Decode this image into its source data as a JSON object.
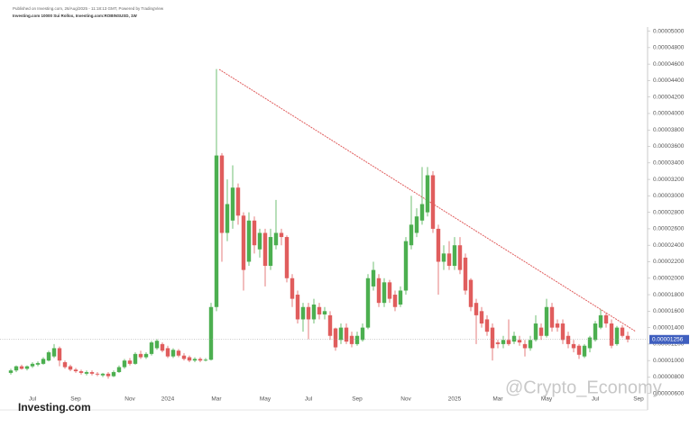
{
  "chart_data": {
    "type": "candlestick",
    "header_line_1": "Published on Investing.com, 26/Aug/2025 - 11:18:13 GMT, Powered by TradingView",
    "header_line_2": "Investing.com 10000 Sui Rollox, Investing.com:ROBINSUSD, 1W",
    "logo": "Investing.com",
    "watermark": "@Crypto_Economy",
    "up_color": "#4caf50",
    "down_color": "#e05d5d",
    "categories": [
      null,
      null,
      null,
      null,
      "Jul",
      null,
      null,
      null,
      null,
      null,
      null,
      null,
      "Sep",
      null,
      null,
      null,
      null,
      null,
      null,
      null,
      null,
      null,
      "Nov",
      null,
      null,
      null,
      null,
      null,
      null,
      "2024",
      null,
      null,
      null,
      null,
      null,
      null,
      null,
      null,
      "Mar",
      null,
      null,
      null,
      null,
      null,
      null,
      null,
      null,
      "May",
      null,
      null,
      null,
      null,
      null,
      null,
      null,
      "Jul",
      null,
      null,
      null,
      null,
      null,
      null,
      null,
      null,
      "Sep",
      null,
      null,
      null,
      null,
      null,
      null,
      null,
      null,
      "Nov",
      null,
      null,
      null,
      null,
      null,
      null,
      null,
      null,
      "2025",
      null,
      null,
      null,
      null,
      null,
      null,
      null,
      "Mar",
      null,
      null,
      null,
      null,
      null,
      null,
      null,
      null,
      "May",
      null,
      null,
      null,
      null,
      null,
      null,
      null,
      null,
      "Jul",
      null,
      null,
      null,
      null,
      null,
      null,
      null,
      "Sep"
    ],
    "open": [
      8.5e-06,
      8.8e-06,
      9.3e-06,
      9e-06,
      9.3e-06,
      9.5e-06,
      9.6e-06,
      1e-05,
      1.05e-05,
      1.15e-05,
      9.8e-06,
      9.3e-06,
      8.9e-06,
      8.7e-06,
      8.4e-06,
      8.6e-06,
      8.4e-06,
      8.2e-06,
      8.4e-06,
      8.1e-06,
      8.6e-06,
      9.2e-06,
      1e-05,
      9.6e-06,
      1.08e-05,
      1.04e-05,
      1.08e-05,
      1.15e-05,
      1.2e-05,
      1.15e-05,
      1.05e-05,
      1.12e-05,
      1.06e-05,
      1.04e-05,
      1e-05,
      1.02e-05,
      1e-05,
      1.01e-05,
      1.65e-05,
      3.49e-05,
      2.55e-05,
      2.7e-05,
      3.1e-05,
      2.76e-05,
      2.2e-05,
      2.7e-05,
      2.35e-05,
      2.55e-05,
      2.15e-05,
      2.4e-05,
      2.55e-05,
      2.5e-05,
      2e-05,
      1.8e-05,
      1.5e-05,
      1.65e-05,
      1.5e-05,
      1.65e-05,
      1.56e-05,
      1.55e-05,
      1.39e-05,
      1.25e-05,
      1.4e-05,
      1.3e-05,
      1.2e-05,
      1.25e-05,
      1.4e-05,
      1.9e-05,
      2e-05,
      1.7e-05,
      1.95e-05,
      1.8e-05,
      1.68e-05,
      1.85e-05,
      2.4e-05,
      2.55e-05,
      2.7e-05,
      2.8e-05,
      3.25e-05,
      2.6e-05,
      2.2e-05,
      2.3e-05,
      2.15e-05,
      2.4e-05,
      2.25e-05,
      1.98e-05,
      1.7e-05,
      1.6e-05,
      1.5e-05,
      1.4e-05,
      1.22e-05,
      1.2e-05,
      1.25e-05,
      1.23e-05,
      1.25e-05,
      1.2e-05,
      1.15e-05,
      1.25e-05,
      1.4e-05,
      1.3e-05,
      1.65e-05,
      1.45e-05,
      1.45e-05,
      1.3e-05,
      1.2e-05,
      1.18e-05,
      1.05e-05,
      1.15e-05,
      1.25e-05,
      1.4e-05,
      1.55e-05,
      1.45e-05,
      1.2e-05,
      1.4e-05,
      1.3e-05,
      null,
      null
    ],
    "high": [
      9e-06,
      9.4e-06,
      9.5e-06,
      9.4e-06,
      9.8e-06,
      9.9e-06,
      1.04e-05,
      1.12e-05,
      1.2e-05,
      1.17e-05,
      1e-05,
      9.5e-06,
      9.1e-06,
      8.9e-06,
      8.8e-06,
      8.8e-06,
      8.6e-06,
      8.5e-06,
      8.6e-06,
      8.8e-06,
      9.4e-06,
      1.02e-05,
      1.03e-05,
      1.1e-05,
      1.12e-05,
      1.1e-05,
      1.24e-05,
      1.26e-05,
      1.22e-05,
      1.18e-05,
      1.15e-05,
      1.14e-05,
      1.09e-05,
      1.06e-05,
      1.04e-05,
      1.04e-05,
      1.03e-05,
      1.7e-05,
      4.54e-05,
      3.52e-05,
      3.2e-05,
      3.37e-05,
      3.15e-05,
      2.8e-05,
      2.8e-05,
      2.75e-05,
      2.6e-05,
      2.6e-05,
      2.6e-05,
      2.95e-05,
      2.6e-05,
      2.52e-05,
      2.05e-05,
      1.85e-05,
      1.7e-05,
      1.7e-05,
      1.75e-05,
      1.7e-05,
      1.65e-05,
      1.6e-05,
      1.4e-05,
      1.45e-05,
      1.45e-05,
      1.35e-05,
      1.35e-05,
      1.45e-05,
      2.05e-05,
      2.2e-05,
      2.05e-05,
      2e-05,
      1.98e-05,
      1.85e-05,
      1.9e-05,
      2.5e-05,
      3e-05,
      2.85e-05,
      3.35e-05,
      3.35e-05,
      3.3e-05,
      2.65e-05,
      2.4e-05,
      2.45e-05,
      2.5e-05,
      2.5e-05,
      2.3e-05,
      2e-05,
      1.75e-05,
      1.65e-05,
      1.55e-05,
      1.45e-05,
      1.25e-05,
      1.3e-05,
      1.5e-05,
      1.35e-05,
      1.3e-05,
      1.25e-05,
      1.3e-05,
      1.55e-05,
      1.45e-05,
      1.75e-05,
      1.7e-05,
      1.5e-05,
      1.5e-05,
      1.35e-05,
      1.25e-05,
      1.2e-05,
      1.2e-05,
      1.3e-05,
      1.48e-05,
      1.62e-05,
      1.58e-05,
      1.5e-05,
      1.42e-05,
      1.43e-05,
      1.35e-05,
      null,
      null
    ],
    "low": [
      8.3e-06,
      8.6e-06,
      8.9e-06,
      8.8e-06,
      9.1e-06,
      9.3e-06,
      9.5e-06,
      9.9e-06,
      1.03e-05,
      9.3e-06,
      9e-06,
      8.7e-06,
      8.5e-06,
      8.3e-06,
      8.2e-06,
      8.2e-06,
      8.1e-06,
      8e-06,
      7.8e-06,
      8e-06,
      8.5e-06,
      9e-06,
      9.4e-06,
      9.5e-06,
      1.02e-05,
      1.02e-05,
      1.06e-05,
      1.13e-05,
      1.1e-05,
      1.03e-05,
      1.03e-05,
      1.04e-05,
      1e-05,
      9.8e-06,
      9.8e-06,
      9.8e-06,
      9.9e-06,
      1e-05,
      1.6e-05,
      2.2e-05,
      2.45e-05,
      2.6e-05,
      2.65e-05,
      1.85e-05,
      2.15e-05,
      2.3e-05,
      2.25e-05,
      1.9e-05,
      2.1e-05,
      2.35e-05,
      2.4e-05,
      1.95e-05,
      1.65e-05,
      1.45e-05,
      1.35e-05,
      1.26e-05,
      1.45e-05,
      1.5e-05,
      1.5e-05,
      1.25e-05,
      1.12e-05,
      1.2e-05,
      1.2e-05,
      1.16e-05,
      1.18e-05,
      1.23e-05,
      1.38e-05,
      1.85e-05,
      1.65e-05,
      1.65e-05,
      1.7e-05,
      1.6e-05,
      1.65e-05,
      1.8e-05,
      2.35e-05,
      2.5e-05,
      2.65e-05,
      2.75e-05,
      2.55e-05,
      1.8e-05,
      2.1e-05,
      2.1e-05,
      2.1e-05,
      2.05e-05,
      1.8e-05,
      1.6e-05,
      1.2e-05,
      1.4e-05,
      1.3e-05,
      1e-05,
      1.15e-05,
      1.15e-05,
      1.18e-05,
      1.2e-05,
      1.18e-05,
      1.05e-05,
      1.12e-05,
      1.23e-05,
      1.25e-05,
      1.28e-05,
      1.35e-05,
      1.35e-05,
      1.2e-05,
      1.15e-05,
      1.1e-05,
      1.02e-05,
      1.03e-05,
      1.1e-05,
      1.23e-05,
      1.38e-05,
      1.4e-05,
      1.15e-05,
      1.18e-05,
      1.28e-05,
      1.22e-05,
      null,
      null
    ],
    "close": [
      8.8e-06,
      9.3e-06,
      9e-06,
      9.3e-06,
      9.6e-06,
      9.7e-06,
      1.02e-05,
      1.1e-05,
      1.15e-05,
      1e-05,
      9.2e-06,
      8.9e-06,
      8.7e-06,
      8.5e-06,
      8.6e-06,
      8.4e-06,
      8.3e-06,
      8.4e-06,
      8.1e-06,
      8.6e-06,
      9.2e-06,
      1e-05,
      9.6e-06,
      1.08e-05,
      1.04e-05,
      1.08e-05,
      1.22e-05,
      1.24e-05,
      1.12e-05,
      1.05e-05,
      1.13e-05,
      1.06e-05,
      1.02e-05,
      1e-05,
      1.02e-05,
      1e-05,
      1.01e-05,
      1.65e-05,
      3.49e-05,
      2.55e-05,
      2.9e-05,
      3.1e-05,
      2.76e-05,
      2.1e-05,
      2.7e-05,
      2.4e-05,
      2.55e-05,
      2.15e-05,
      2.5e-05,
      2.55e-05,
      2.5e-05,
      2e-05,
      1.75e-05,
      1.5e-05,
      1.65e-05,
      1.5e-05,
      1.68e-05,
      1.56e-05,
      1.6e-05,
      1.3e-05,
      1.16e-05,
      1.4e-05,
      1.23e-05,
      1.2e-05,
      1.3e-05,
      1.4e-05,
      2e-05,
      2.1e-05,
      1.7e-05,
      1.95e-05,
      1.75e-05,
      1.65e-05,
      1.85e-05,
      2.45e-05,
      2.65e-05,
      2.75e-05,
      2.9e-05,
      3.25e-05,
      2.6e-05,
      2.2e-05,
      2.3e-05,
      2.15e-05,
      2.4e-05,
      2.1e-05,
      1.85e-05,
      1.65e-05,
      1.55e-05,
      1.45e-05,
      1.35e-05,
      1.15e-05,
      1.2e-05,
      1.25e-05,
      1.2e-05,
      1.3e-05,
      1.22e-05,
      1.15e-05,
      1.25e-05,
      1.45e-05,
      1.3e-05,
      1.65e-05,
      1.4e-05,
      1.4e-05,
      1.25e-05,
      1.2e-05,
      1.15e-05,
      1.07e-05,
      1.18e-05,
      1.28e-05,
      1.45e-05,
      1.55e-05,
      1.45e-05,
      1.18e-05,
      1.4e-05,
      1.3e-05,
      1.256e-05,
      null,
      null
    ],
    "last_price": {
      "value": 1.256e-05,
      "label": "0.00001256"
    },
    "ylim": [
      4e-06,
      5.05e-05
    ],
    "yticks": [
      {
        "value": 6e-06,
        "label": "0.00000600"
      },
      {
        "value": 8e-06,
        "label": "0.00000800"
      },
      {
        "value": 1e-05,
        "label": "0.00001000"
      },
      {
        "value": 1.2e-05,
        "label": "0.00001200"
      },
      {
        "value": 1.4e-05,
        "label": "0.00001400"
      },
      {
        "value": 1.6e-05,
        "label": "0.00001600"
      },
      {
        "value": 1.8e-05,
        "label": "0.00001800"
      },
      {
        "value": 2e-05,
        "label": "0.00002000"
      },
      {
        "value": 2.2e-05,
        "label": "0.00002200"
      },
      {
        "value": 2.4e-05,
        "label": "0.00002400"
      },
      {
        "value": 2.6e-05,
        "label": "0.00002600"
      },
      {
        "value": 2.8e-05,
        "label": "0.00002800"
      },
      {
        "value": 3e-05,
        "label": "0.00003000"
      },
      {
        "value": 3.2e-05,
        "label": "0.00003200"
      },
      {
        "value": 3.4e-05,
        "label": "0.00003400"
      },
      {
        "value": 3.6e-05,
        "label": "0.00003600"
      },
      {
        "value": 3.8e-05,
        "label": "0.00003800"
      },
      {
        "value": 4e-05,
        "label": "0.00004000"
      },
      {
        "value": 4.2e-05,
        "label": "0.00004200"
      },
      {
        "value": 4.4e-05,
        "label": "0.00004400"
      },
      {
        "value": 4.6e-05,
        "label": "0.00004600"
      },
      {
        "value": 4.8e-05,
        "label": "0.00004800"
      },
      {
        "value": 5e-05,
        "label": "0.00005000"
      }
    ]
  }
}
